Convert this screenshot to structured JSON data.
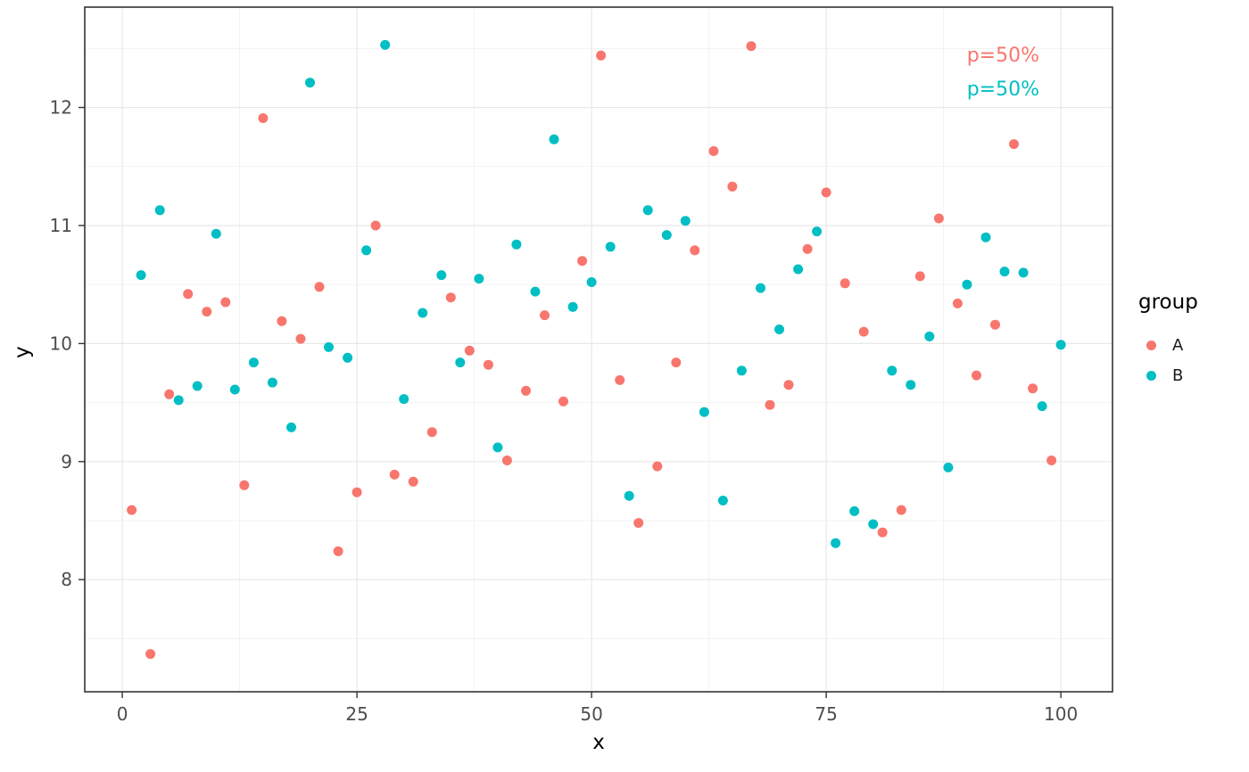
{
  "chart_data": {
    "type": "scatter",
    "title": "",
    "xlabel": "x",
    "ylabel": "y",
    "xlim": [
      -4,
      105.5
    ],
    "ylim": [
      7.05,
      12.85
    ],
    "x_ticks": [
      0,
      25,
      50,
      75,
      100
    ],
    "y_ticks": [
      8,
      9,
      10,
      11,
      12
    ],
    "x_minor_ticks": [
      12.5,
      37.5,
      62.5,
      87.5
    ],
    "y_minor_ticks": [
      7.5,
      8.5,
      9.5,
      10.5,
      11.5,
      12.5
    ],
    "grid": true,
    "panel_border_color": "#333333",
    "grid_major_color": "#e8e8e8",
    "grid_minor_color": "#f3f3f3",
    "tick_label_color": "#4d4d4d",
    "legend": {
      "title": "group",
      "position": "right"
    },
    "annotations": [
      {
        "text": "p=50%",
        "color": "#F8766D"
      },
      {
        "text": "p=50%",
        "color": "#00BFC4"
      }
    ],
    "series": [
      {
        "name": "A",
        "color": "#F8766D",
        "points": [
          [
            1,
            8.59
          ],
          [
            3,
            7.37
          ],
          [
            5,
            9.57
          ],
          [
            7,
            10.42
          ],
          [
            9,
            10.27
          ],
          [
            11,
            10.35
          ],
          [
            13,
            8.8
          ],
          [
            15,
            11.91
          ],
          [
            17,
            10.19
          ],
          [
            19,
            10.04
          ],
          [
            21,
            10.48
          ],
          [
            23,
            8.24
          ],
          [
            25,
            8.74
          ],
          [
            27,
            11.0
          ],
          [
            29,
            8.89
          ],
          [
            31,
            8.83
          ],
          [
            33,
            9.25
          ],
          [
            35,
            10.39
          ],
          [
            37,
            9.94
          ],
          [
            39,
            9.82
          ],
          [
            41,
            9.01
          ],
          [
            43,
            9.6
          ],
          [
            45,
            10.24
          ],
          [
            47,
            9.51
          ],
          [
            49,
            10.7
          ],
          [
            51,
            12.44
          ],
          [
            53,
            9.69
          ],
          [
            55,
            8.48
          ],
          [
            57,
            8.96
          ],
          [
            59,
            9.84
          ],
          [
            61,
            10.79
          ],
          [
            63,
            11.63
          ],
          [
            65,
            11.33
          ],
          [
            67,
            12.52
          ],
          [
            69,
            9.48
          ],
          [
            71,
            9.65
          ],
          [
            73,
            10.8
          ],
          [
            75,
            11.28
          ],
          [
            77,
            10.51
          ],
          [
            79,
            10.1
          ],
          [
            81,
            8.4
          ],
          [
            83,
            8.59
          ],
          [
            85,
            10.57
          ],
          [
            87,
            11.06
          ],
          [
            89,
            10.34
          ],
          [
            91,
            9.73
          ],
          [
            93,
            10.16
          ],
          [
            95,
            11.69
          ],
          [
            97,
            9.62
          ],
          [
            99,
            9.01
          ]
        ]
      },
      {
        "name": "B",
        "color": "#00BFC4",
        "points": [
          [
            2,
            10.58
          ],
          [
            4,
            11.13
          ],
          [
            6,
            9.52
          ],
          [
            8,
            9.64
          ],
          [
            10,
            10.93
          ],
          [
            12,
            9.61
          ],
          [
            14,
            9.84
          ],
          [
            16,
            9.67
          ],
          [
            18,
            9.29
          ],
          [
            20,
            12.21
          ],
          [
            22,
            9.97
          ],
          [
            24,
            9.88
          ],
          [
            26,
            10.79
          ],
          [
            28,
            12.53
          ],
          [
            30,
            9.53
          ],
          [
            32,
            10.26
          ],
          [
            34,
            10.58
          ],
          [
            36,
            9.84
          ],
          [
            38,
            10.55
          ],
          [
            40,
            9.12
          ],
          [
            42,
            10.84
          ],
          [
            44,
            10.44
          ],
          [
            46,
            11.73
          ],
          [
            48,
            10.31
          ],
          [
            50,
            10.52
          ],
          [
            52,
            10.82
          ],
          [
            54,
            8.71
          ],
          [
            56,
            11.13
          ],
          [
            58,
            10.92
          ],
          [
            60,
            11.04
          ],
          [
            62,
            9.42
          ],
          [
            64,
            8.67
          ],
          [
            66,
            9.77
          ],
          [
            68,
            10.47
          ],
          [
            70,
            10.12
          ],
          [
            72,
            10.63
          ],
          [
            74,
            10.95
          ],
          [
            76,
            8.31
          ],
          [
            78,
            8.58
          ],
          [
            80,
            8.47
          ],
          [
            82,
            9.77
          ],
          [
            84,
            9.65
          ],
          [
            86,
            10.06
          ],
          [
            88,
            8.95
          ],
          [
            90,
            10.5
          ],
          [
            92,
            10.9
          ],
          [
            94,
            10.61
          ],
          [
            96,
            10.6
          ],
          [
            98,
            9.47
          ],
          [
            100,
            9.99
          ]
        ]
      }
    ]
  }
}
